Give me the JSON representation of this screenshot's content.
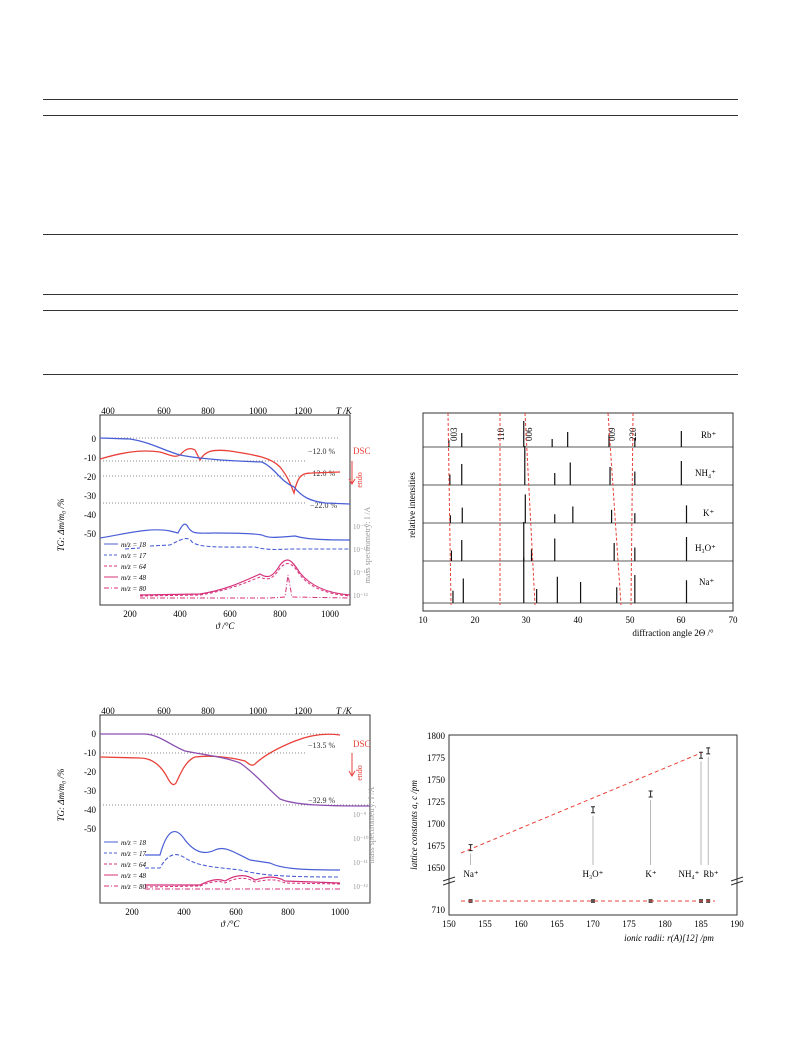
{
  "colors": {
    "blue": "#4a5fd6",
    "red": "#e8413a",
    "magenta": "#d6307a",
    "grey": "#9a9a9a"
  },
  "panel_a": {
    "top_axis_label": "T /K",
    "top_ticks": [
      "400",
      "600",
      "800",
      "1000",
      "1200"
    ],
    "bottom_ticks": [
      "200",
      "400",
      "600",
      "800",
      "1000"
    ],
    "y_ticks": [
      "0",
      "-10",
      "-20",
      "-30",
      "-40",
      "-50"
    ],
    "xlabel": "ϑ /°C",
    "ylabel_tg": "TG: Δm/m₀ /%",
    "ylabel_ms": "mass spectrometry: I /A",
    "ms_ticks": [
      "10⁻⁹",
      "10⁻¹⁰",
      "10⁻¹¹",
      "10⁻¹²"
    ],
    "dsc_label": "DSC",
    "endo_label": "endo",
    "annotations": [
      "−12.0 %",
      "−12.0 %",
      "−22.0 %"
    ],
    "legend": [
      "m/z = 18",
      "m/z = 17",
      "m/z = 64",
      "m/z = 48",
      "m/z = 80"
    ]
  },
  "panel_b": {
    "ylabel": "relative intensities",
    "xlabel": "diffraction angle 2Θ /°",
    "x_ticks": [
      "10",
      "20",
      "30",
      "40",
      "50",
      "60",
      "70"
    ],
    "peak_labels": [
      "003",
      "110",
      "006",
      "009",
      "220"
    ],
    "pattern_labels": [
      "Rb⁺",
      "NH₄⁺",
      "K⁺",
      "H₃O⁺",
      "Na⁺"
    ]
  },
  "panel_c": {
    "top_axis_label": "T /K",
    "top_ticks": [
      "400",
      "600",
      "800",
      "1000",
      "1200"
    ],
    "bottom_ticks": [
      "200",
      "400",
      "600",
      "800",
      "1000"
    ],
    "y_ticks": [
      "0",
      "-10",
      "-20",
      "-30",
      "-40",
      "-50"
    ],
    "xlabel": "ϑ /°C",
    "ylabel_tg": "TG: Δm/m₀ /%",
    "ylabel_ms": "mass spectrometry: I /A",
    "ms_ticks": [
      "10⁻⁹",
      "10⁻¹⁰",
      "10⁻¹¹",
      "10⁻¹²"
    ],
    "dsc_label": "DSC",
    "endo_label": "endo",
    "annotations": [
      "−13.5 %",
      "−32.9 %"
    ],
    "legend": [
      "m/z = 18",
      "m/z = 17",
      "m/z = 64",
      "m/z = 48",
      "m/z = 80"
    ]
  },
  "panel_d": {
    "ylabel": "lattice constants a, c /pm",
    "xlabel": "ionic radii: r(A)[12] /pm",
    "x_ticks": [
      "150",
      "155",
      "160",
      "165",
      "170",
      "175",
      "180",
      "185",
      "190"
    ],
    "y_ticks_top": [
      "1800",
      "1775",
      "1750",
      "1725",
      "1700",
      "1675",
      "1650"
    ],
    "y_ticks_bottom": [
      "710"
    ],
    "ion_labels": [
      "Na⁺",
      "H₃O⁺",
      "K⁺",
      "NH₄⁺",
      "Rb⁺"
    ]
  },
  "chart_data": [
    {
      "type": "line",
      "x": [
        100,
        200,
        300,
        400,
        500,
        600,
        700,
        800,
        900,
        1000,
        1100
      ],
      "xlabel": "ϑ /°C",
      "ylabel": "TG: Δm/m₀ /%",
      "ylim": [
        -55,
        3
      ],
      "series": [
        {
          "name": "TG",
          "values": [
            0,
            0,
            -2,
            -8,
            -11,
            -12,
            -14,
            -22,
            -40,
            -44,
            -45
          ]
        },
        {
          "name": "DSC",
          "values": [
            -10,
            -7,
            -7,
            -10,
            -8,
            -9,
            -12,
            -20,
            -40,
            -23,
            -22
          ]
        }
      ]
    },
    {
      "type": "line",
      "x": [
        10,
        20,
        30,
        40,
        50,
        60,
        70
      ],
      "xlabel": "diffraction angle 2Θ /°",
      "ylabel": "relative intensities",
      "series": [
        {
          "name": "Rb⁺",
          "peaks": [
            15,
            17.5,
            29.5,
            35,
            38,
            46,
            51,
            60
          ]
        },
        {
          "name": "NH₄⁺",
          "peaks": [
            15.2,
            17.5,
            29.7,
            35.5,
            38.5,
            46.2,
            51,
            60
          ]
        },
        {
          "name": "K⁺",
          "peaks": [
            15.3,
            17.6,
            29.8,
            35.5,
            39,
            46.5,
            51,
            61
          ]
        },
        {
          "name": "H₃O⁺",
          "peaks": [
            15.5,
            17.5,
            29.5,
            31,
            35.5,
            47,
            51,
            61
          ]
        },
        {
          "name": "Na⁺",
          "peaks": [
            15.8,
            17.8,
            29.5,
            32,
            36,
            40.5,
            47.5,
            51,
            61
          ]
        }
      ]
    },
    {
      "type": "line",
      "x": [
        100,
        200,
        300,
        400,
        500,
        600,
        700,
        800,
        900,
        1000,
        1100
      ],
      "xlabel": "ϑ /°C",
      "ylabel": "TG: Δm/m₀ /%",
      "ylim": [
        -55,
        3
      ],
      "series": [
        {
          "name": "TG",
          "values": [
            0,
            0,
            0,
            -3,
            -10,
            -13,
            -16,
            -28,
            -40,
            -45,
            -46
          ]
        },
        {
          "name": "DSC",
          "values": [
            -15,
            -15,
            -16,
            -30,
            -18,
            -14,
            -18,
            -15,
            -10,
            -5,
            -4
          ]
        }
      ]
    },
    {
      "type": "scatter",
      "xlabel": "ionic radii: r(A)[12] /pm",
      "ylabel": "lattice constants a, c /pm",
      "categories": [
        "Na⁺",
        "H₃O⁺",
        "K⁺",
        "NH₄⁺",
        "Rb⁺"
      ],
      "x": [
        153,
        170,
        178,
        185,
        186
      ],
      "series": [
        {
          "name": "c",
          "values": [
            1672,
            1715,
            1733,
            1777,
            1782
          ]
        },
        {
          "name": "a",
          "values": [
            715.5,
            716,
            715.5,
            716,
            716
          ]
        }
      ],
      "ylim": [
        1645,
        1800
      ]
    }
  ]
}
